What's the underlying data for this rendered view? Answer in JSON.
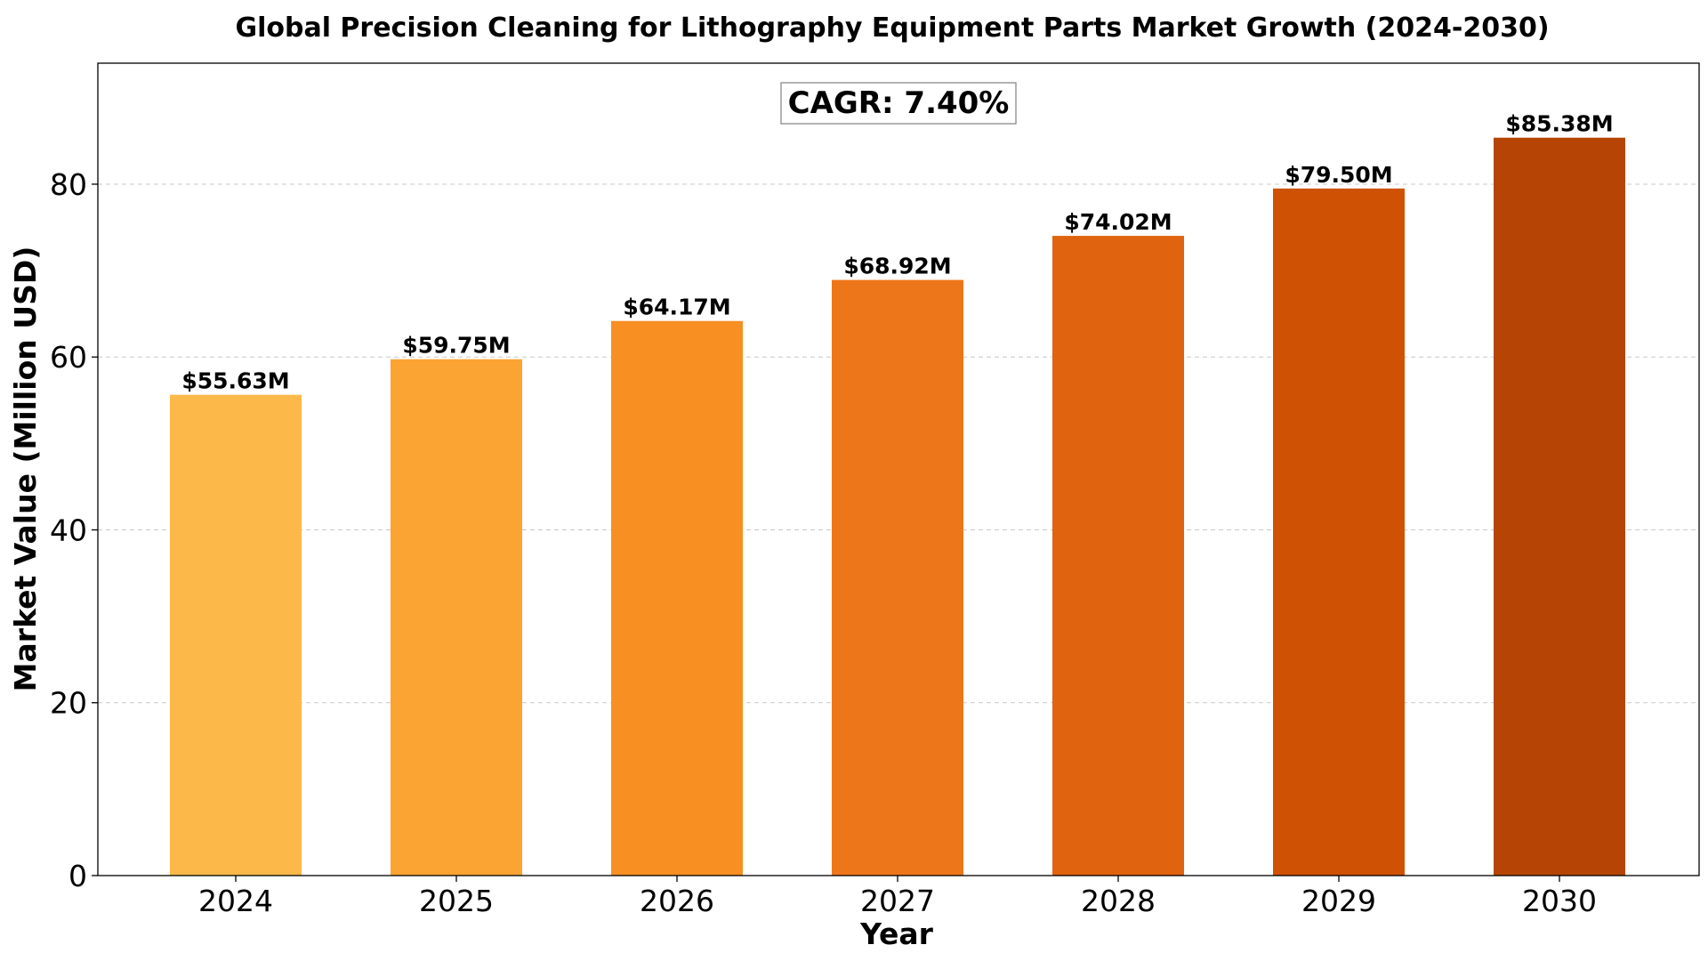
{
  "chart_data": {
    "type": "bar",
    "title": "Global Precision Cleaning for Lithography Equipment Parts Market Growth (2024-2030)",
    "xlabel": "Year",
    "ylabel": "Market Value (Million USD)",
    "categories": [
      "2024",
      "2025",
      "2026",
      "2027",
      "2028",
      "2029",
      "2030"
    ],
    "values": [
      55.63,
      59.75,
      64.17,
      68.92,
      74.02,
      79.5,
      85.38
    ],
    "value_labels": [
      "$55.63M",
      "$59.75M",
      "$64.17M",
      "$68.92M",
      "$74.02M",
      "$79.50M",
      "$85.38M"
    ],
    "bar_colors": [
      "#fdb84a",
      "#fca433",
      "#f78f23",
      "#ee761a",
      "#e0630f",
      "#cf5204",
      "#b64505"
    ],
    "ylim": [
      0,
      94
    ],
    "yticks": [
      0,
      20,
      40,
      60,
      80
    ],
    "grid": "y-dashed",
    "annotation": "CAGR: 7.40%"
  }
}
